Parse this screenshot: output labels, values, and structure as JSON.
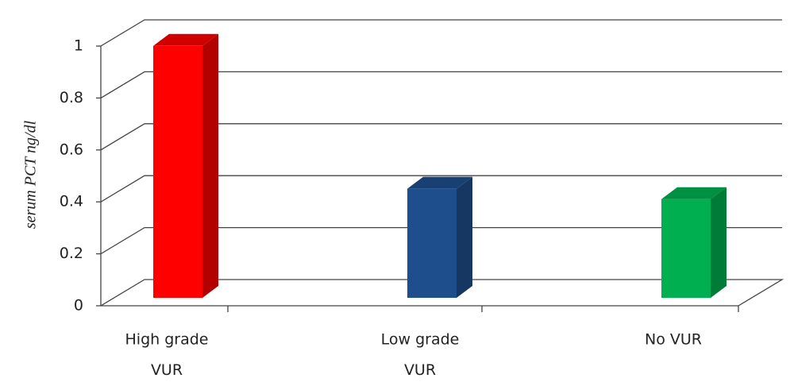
{
  "chart_data": {
    "type": "bar3d",
    "y_label": "serum PCT ng/dl",
    "categories": [
      "High grade VUR",
      "Low grade VUR",
      "No VUR"
    ],
    "values": [
      0.97,
      0.42,
      0.38
    ],
    "colors": [
      "#ff0000",
      "#1f4e8c",
      "#00b050"
    ],
    "ylim": [
      0,
      1
    ],
    "yticks": [
      0,
      0.2,
      0.4,
      0.6,
      0.8,
      1
    ],
    "grid": true
  }
}
